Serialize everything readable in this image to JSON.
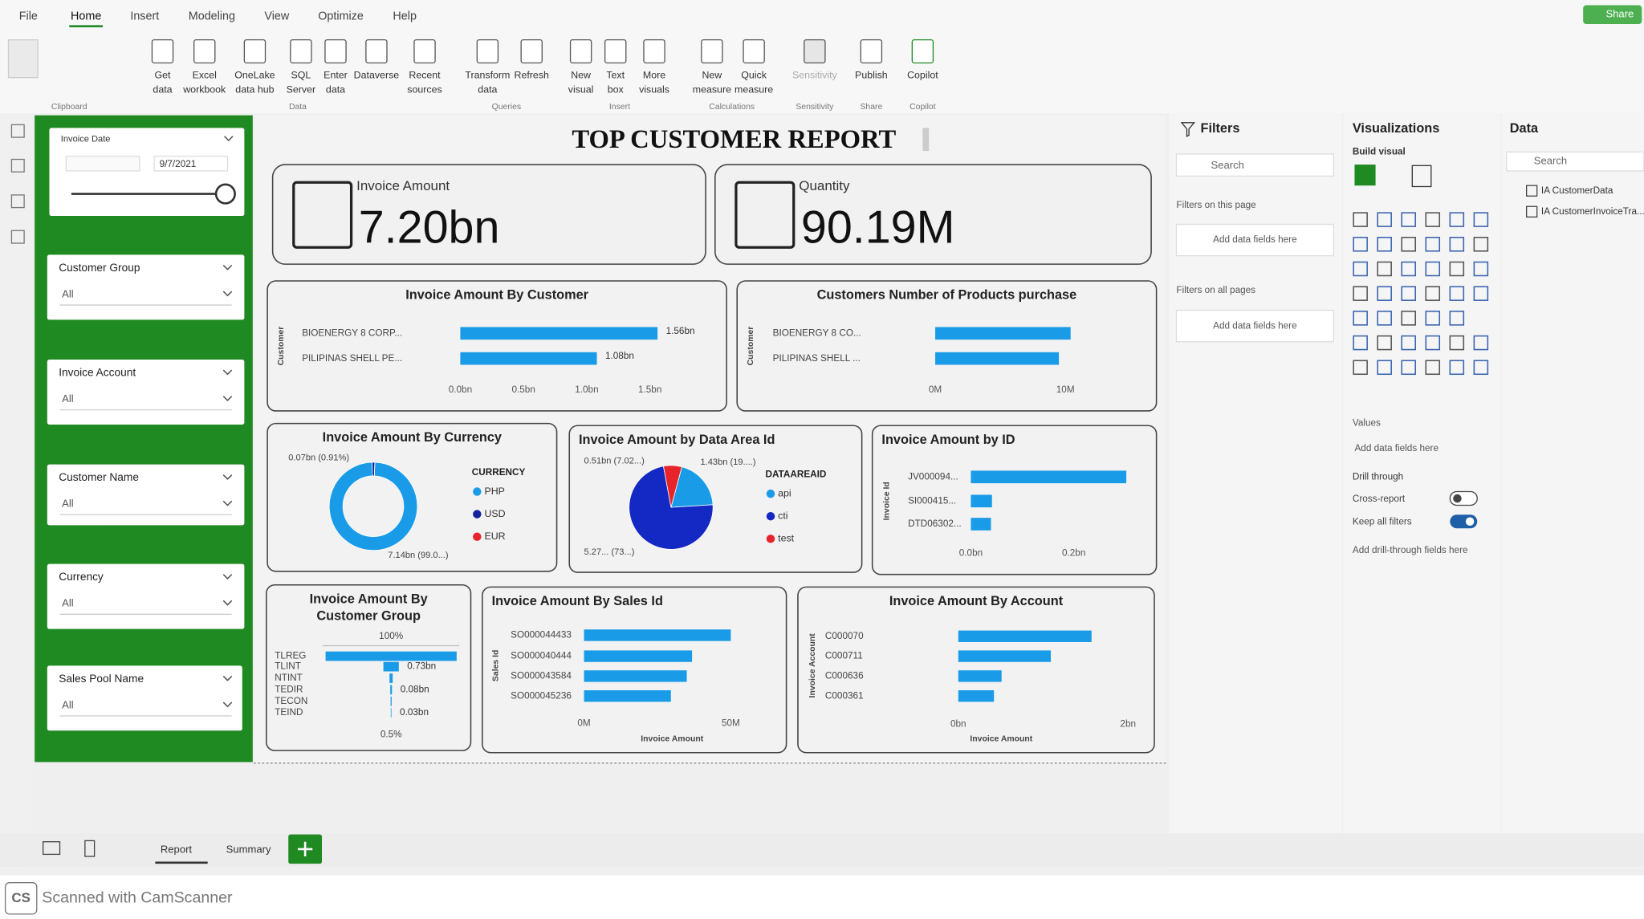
{
  "menu": {
    "tabs": [
      "File",
      "Home",
      "Insert",
      "Modeling",
      "View",
      "Optimize",
      "Help"
    ],
    "share": "Share"
  },
  "ribbon": {
    "buttons": [
      {
        "lines": [
          "Get",
          "data"
        ]
      },
      {
        "lines": [
          "Excel",
          "workbook"
        ]
      },
      {
        "lines": [
          "OneLake",
          "data hub"
        ]
      },
      {
        "lines": [
          "SQL",
          "Server"
        ]
      },
      {
        "lines": [
          "Enter",
          "data"
        ]
      },
      {
        "lines": [
          "Dataverse"
        ]
      },
      {
        "lines": [
          "Recent",
          "sources"
        ]
      },
      {
        "lines": [
          "Transform",
          "data"
        ]
      },
      {
        "lines": [
          "Refresh"
        ]
      },
      {
        "lines": [
          "New",
          "visual"
        ]
      },
      {
        "lines": [
          "Text",
          "box"
        ]
      },
      {
        "lines": [
          "More",
          "visuals"
        ]
      },
      {
        "lines": [
          "New",
          "measure"
        ]
      },
      {
        "lines": [
          "Quick",
          "measure"
        ]
      },
      {
        "lines": [
          "Sensitivity"
        ]
      },
      {
        "lines": [
          "Publish"
        ]
      },
      {
        "lines": [
          "Copilot"
        ]
      }
    ],
    "groups": [
      "Clipboard",
      "Data",
      "Queries",
      "Insert",
      "Calculations",
      "Sensitivity",
      "Share",
      "Copilot"
    ]
  },
  "slicers": [
    {
      "title": "Invoice Date",
      "value": "9/7/2021"
    },
    {
      "title": "Customer Group",
      "value": "All"
    },
    {
      "title": "Invoice Account",
      "value": "All"
    },
    {
      "title": "Customer Name",
      "value": "All"
    },
    {
      "title": "Currency",
      "value": "All"
    },
    {
      "title": "Sales Pool Name",
      "value": "All"
    }
  ],
  "report": {
    "title": "TOP CUSTOMER REPORT",
    "cards": [
      {
        "label": "Invoice Amount",
        "value": "7.20bn"
      },
      {
        "label": "Quantity",
        "value": "90.19M"
      }
    ]
  },
  "chart_data": [
    {
      "type": "bar",
      "title": "Invoice Amount By Customer",
      "y_label": "Customer",
      "categories": [
        "BIOENERGY 8 CORP...",
        "PILIPINAS SHELL PE..."
      ],
      "values": [
        1.56,
        1.08
      ],
      "value_labels": [
        "1.56bn",
        "1.08bn"
      ],
      "color": "#1a9be8",
      "xlim": [
        0,
        1.65
      ],
      "xticks": [
        {
          "value": 0,
          "label": "0.0bn"
        },
        {
          "value": 0.5,
          "label": "0.5bn"
        },
        {
          "value": 1,
          "label": "1.0bn"
        },
        {
          "value": 1.5,
          "label": "1.5bn"
        }
      ]
    },
    {
      "type": "bar",
      "title": "Customers Number of Products purchase",
      "y_label": "Customer",
      "categories": [
        "BIOENERGY 8 CO...",
        "PILIPINAS SHELL ..."
      ],
      "values": [
        10.4,
        9.5
      ],
      "color": "#1a9be8",
      "xlim": [
        0,
        12
      ],
      "xticks": [
        {
          "value": 0,
          "label": "0M"
        },
        {
          "value": 10,
          "label": "10M"
        }
      ]
    },
    {
      "type": "donut",
      "title": "Invoice Amount By Currency",
      "legend_title": "CURRENCY",
      "categories": [
        "PHP",
        "USD",
        "EUR"
      ],
      "colors": [
        "#1a9be8",
        "#12239e",
        "#e8242b"
      ],
      "values": [
        7.14,
        0.07,
        0
      ],
      "value_labels": [
        "7.14bn (99.0...)",
        "0.07bn (0.91%)",
        null
      ]
    },
    {
      "type": "pie",
      "title": "Invoice Amount by Data Area Id",
      "legend_title": "DATAAREAID",
      "categories": [
        "api",
        "cti",
        "test"
      ],
      "colors": [
        "#1a9be8",
        "#1428c4",
        "#e8242b"
      ],
      "values": [
        1.43,
        5.27,
        0.51
      ],
      "value_labels": [
        "1.43bn (19....)",
        "5.27... (73...)",
        "0.51bn (7.02...)"
      ]
    },
    {
      "type": "bar",
      "title": "Invoice Amount by ID",
      "y_label": "Invoice Id",
      "categories": [
        "JV000094...",
        "SI000415...",
        "DTD06302..."
      ],
      "values": [
        0.302,
        0.041,
        0.039
      ],
      "color": "#1a9be8",
      "xlim": [
        0,
        0.33
      ],
      "xticks": [
        {
          "value": 0,
          "label": "0.0bn"
        },
        {
          "value": 0.2,
          "label": "0.2bn"
        }
      ]
    },
    {
      "type": "funnel",
      "title_lines": [
        "Invoice Amount By",
        "Customer Group"
      ],
      "categories": [
        "TLREG",
        "TLINT",
        "NTINT",
        "TEDIR",
        "TECON",
        "TEIND"
      ],
      "values": [
        6.2,
        0.73,
        0.15,
        0.08,
        0.05,
        0.03
      ],
      "value_labels": [
        null,
        "0.73bn",
        null,
        "0.08bn",
        null,
        "0.03bn"
      ],
      "top_label": "100%",
      "bottom_label": "0.5%",
      "color": "#1a9be8"
    },
    {
      "type": "bar",
      "title": "Invoice Amount By Sales Id",
      "y_label": "Sales Id",
      "x_label": "Invoice Amount",
      "categories": [
        "SO000044433",
        "SO000040444",
        "SO000043584",
        "SO000045236"
      ],
      "values": [
        50,
        36.8,
        35,
        29.6
      ],
      "color": "#1a9be8",
      "xlim": [
        0,
        65
      ],
      "xticks": [
        {
          "value": 0,
          "label": "0M"
        },
        {
          "value": 50,
          "label": "50M"
        }
      ]
    },
    {
      "type": "bar",
      "title": "Invoice Amount By Account",
      "y_label": "Invoice Account",
      "x_label": "Invoice Amount",
      "categories": [
        "C000070",
        "C000711",
        "C000636",
        "C000361"
      ],
      "values": [
        1.57,
        1.09,
        0.51,
        0.42
      ],
      "color": "#1a9be8",
      "xlim": [
        0,
        2.1
      ],
      "xticks": [
        {
          "value": 0,
          "label": "0bn"
        },
        {
          "value": 2,
          "label": "2bn"
        }
      ]
    }
  ],
  "filters": {
    "title": "Filters",
    "search": "Search",
    "this_page": "Filters on this page",
    "this_page_drop": "Add data fields here",
    "all_pages": "Filters on all pages",
    "all_pages_drop": "Add data fields here"
  },
  "visualizations": {
    "title": "Visualizations",
    "build": "Build visual",
    "values": "Values",
    "values_drop": "Add data fields here",
    "drill": "Drill through",
    "cross_report": "Cross-report",
    "keep_filters": "Keep all filters",
    "drill_drop": "Add drill-through fields here"
  },
  "data_pane": {
    "title": "Data",
    "search": "Search",
    "tables": [
      "IA CustomerData",
      "IA CustomerInvoiceTra..."
    ]
  },
  "pages": {
    "tabs": [
      "Report",
      "Summary"
    ]
  },
  "footer": {
    "badge": "CS",
    "text": "Scanned with CamScanner"
  }
}
